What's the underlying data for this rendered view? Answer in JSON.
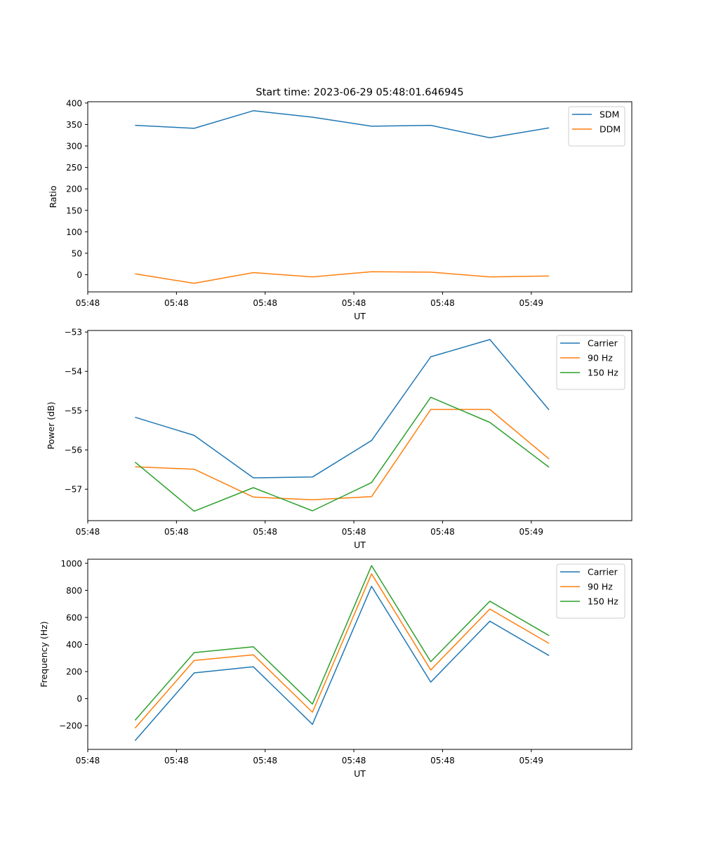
{
  "chart_data": [
    {
      "type": "line",
      "title": "Start time: 2023-06-29 05:48:01.646945",
      "xlabel": "UT",
      "ylabel": "Ratio",
      "x": [
        1,
        2,
        3,
        4,
        5,
        6,
        7,
        8
      ],
      "xlim": [
        0.2,
        9.4
      ],
      "ylim": [
        -40,
        403
      ],
      "x_ticks": [
        {
          "x": 0.2,
          "label": "05:48"
        },
        {
          "x": 1.7,
          "label": "05:48"
        },
        {
          "x": 3.2,
          "label": "05:48"
        },
        {
          "x": 4.7,
          "label": "05:48"
        },
        {
          "x": 6.2,
          "label": "05:48"
        },
        {
          "x": 7.7,
          "label": "05:49"
        }
      ],
      "y_ticks": [
        0,
        50,
        100,
        150,
        200,
        250,
        300,
        350,
        400
      ],
      "series": [
        {
          "name": "SDM",
          "color": "#1f77b4",
          "values": [
            348,
            341,
            382,
            367,
            346,
            348,
            319,
            342
          ]
        },
        {
          "name": "DDM",
          "color": "#ff7f0e",
          "values": [
            2,
            -20,
            5,
            -5,
            7,
            6,
            -5,
            -3
          ]
        }
      ],
      "legend": "top-right"
    },
    {
      "type": "line",
      "title": "",
      "xlabel": "UT",
      "ylabel": "Power (dB)",
      "x": [
        1,
        2,
        3,
        4,
        5,
        6,
        7,
        8
      ],
      "xlim": [
        0.2,
        9.4
      ],
      "ylim": [
        -57.8,
        -52.96
      ],
      "x_ticks": [
        {
          "x": 0.2,
          "label": "05:48"
        },
        {
          "x": 1.7,
          "label": "05:48"
        },
        {
          "x": 3.2,
          "label": "05:48"
        },
        {
          "x": 4.7,
          "label": "05:48"
        },
        {
          "x": 6.2,
          "label": "05:48"
        },
        {
          "x": 7.7,
          "label": "05:49"
        }
      ],
      "y_ticks": [
        -57,
        -56,
        -55,
        -54,
        -53
      ],
      "y_tick_labels": [
        "−57",
        "−56",
        "−55",
        "−54",
        "−53"
      ],
      "series": [
        {
          "name": "Carrier",
          "color": "#1f77b4",
          "values": [
            -55.17,
            -55.63,
            -56.71,
            -56.69,
            -55.76,
            -53.63,
            -53.19,
            -54.98
          ]
        },
        {
          "name": "90 Hz",
          "color": "#ff7f0e",
          "values": [
            -56.43,
            -56.49,
            -57.2,
            -57.27,
            -57.19,
            -54.97,
            -54.97,
            -56.23
          ]
        },
        {
          "name": "150 Hz",
          "color": "#2ca02c",
          "values": [
            -56.31,
            -57.56,
            -56.96,
            -57.55,
            -56.83,
            -54.66,
            -55.3,
            -56.44
          ]
        }
      ],
      "legend": "top-right"
    },
    {
      "type": "line",
      "title": "",
      "xlabel": "UT",
      "ylabel": "Frequency (Hz)",
      "x": [
        1,
        2,
        3,
        4,
        5,
        6,
        7,
        8
      ],
      "xlim": [
        0.2,
        9.4
      ],
      "ylim": [
        -375,
        1030
      ],
      "x_ticks": [
        {
          "x": 0.2,
          "label": "05:48"
        },
        {
          "x": 1.7,
          "label": "05:48"
        },
        {
          "x": 3.2,
          "label": "05:48"
        },
        {
          "x": 4.7,
          "label": "05:48"
        },
        {
          "x": 6.2,
          "label": "05:48"
        },
        {
          "x": 7.7,
          "label": "05:49"
        }
      ],
      "y_ticks": [
        -200,
        0,
        200,
        400,
        600,
        800,
        1000
      ],
      "y_tick_labels": [
        "−200",
        "0",
        "200",
        "400",
        "600",
        "800",
        "1000"
      ],
      "series": [
        {
          "name": "Carrier",
          "color": "#1f77b4",
          "values": [
            -310,
            190,
            235,
            -190,
            830,
            122,
            572,
            318
          ]
        },
        {
          "name": "90 Hz",
          "color": "#ff7f0e",
          "values": [
            -218,
            282,
            324,
            -100,
            922,
            212,
            662,
            408
          ]
        },
        {
          "name": "150 Hz",
          "color": "#2ca02c",
          "values": [
            -160,
            340,
            383,
            -40,
            983,
            273,
            720,
            466
          ]
        }
      ],
      "legend": "top-right"
    }
  ]
}
